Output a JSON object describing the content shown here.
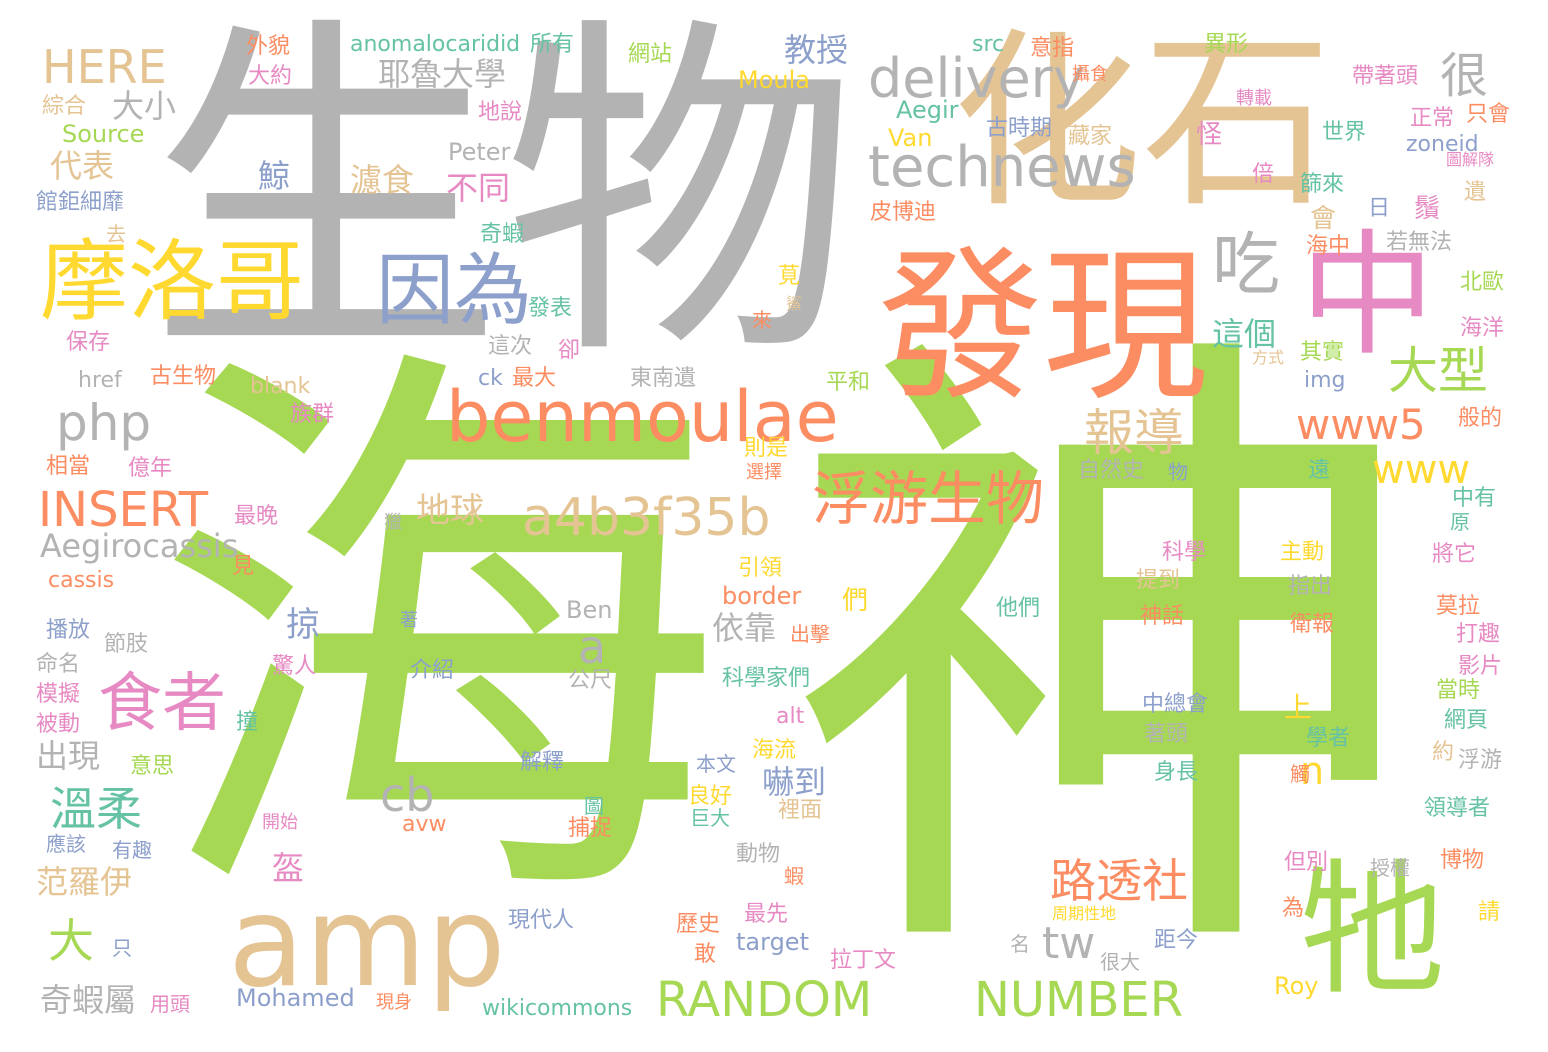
{
  "palette": {
    "green": "#a6d854",
    "gray": "#b3b3b3",
    "tan": "#e5c494",
    "orange": "#fc8d62",
    "yellow": "#ffd92f",
    "blue": "#8da0cb",
    "pink": "#e78ac3",
    "teal": "#66c2a5"
  },
  "words": [
    {
      "text": "海",
      "color": "green"
    },
    {
      "text": "神",
      "color": "green"
    },
    {
      "text": "生物",
      "color": "gray"
    },
    {
      "text": "化石",
      "color": "tan"
    },
    {
      "text": "發現",
      "color": "orange"
    },
    {
      "text": "中",
      "color": "pink"
    },
    {
      "text": "牠",
      "color": "green"
    },
    {
      "text": "amp",
      "color": "tan"
    },
    {
      "text": "摩洛哥",
      "color": "yellow"
    },
    {
      "text": "benmoulae",
      "color": "orange"
    },
    {
      "text": "因為",
      "color": "blue"
    },
    {
      "text": "technews",
      "color": "gray"
    },
    {
      "text": "delivery",
      "color": "gray"
    },
    {
      "text": "浮游生物",
      "color": "orange"
    },
    {
      "text": "a4b3f35b",
      "color": "tan"
    },
    {
      "text": "RANDOM",
      "color": "green"
    },
    {
      "text": "NUMBER",
      "color": "green"
    },
    {
      "text": "INSERT",
      "color": "orange"
    },
    {
      "text": "食者",
      "color": "pink"
    },
    {
      "text": "HERE",
      "color": "tan"
    },
    {
      "text": "吃",
      "color": "gray"
    },
    {
      "text": "很",
      "color": "gray"
    },
    {
      "text": "php",
      "color": "gray"
    },
    {
      "text": "www5",
      "color": "orange"
    },
    {
      "text": "www",
      "color": "yellow"
    },
    {
      "text": "大型",
      "color": "green"
    },
    {
      "text": "報導",
      "color": "tan"
    },
    {
      "text": "路透社",
      "color": "orange"
    },
    {
      "text": "cb",
      "color": "gray"
    },
    {
      "text": "tw",
      "color": "gray"
    },
    {
      "text": "溫柔",
      "color": "teal"
    },
    {
      "text": "大",
      "color": "green"
    },
    {
      "text": "a",
      "color": "gray"
    },
    {
      "text": "Aegirocassis",
      "color": "gray"
    },
    {
      "text": "教授",
      "color": "blue"
    },
    {
      "text": "耶魯大學",
      "color": "gray"
    },
    {
      "text": "大小",
      "color": "gray"
    },
    {
      "text": "代表",
      "color": "tan"
    },
    {
      "text": "地球",
      "color": "tan"
    },
    {
      "text": "濾食",
      "color": "tan"
    },
    {
      "text": "不同",
      "color": "pink"
    },
    {
      "text": "鯨",
      "color": "blue"
    },
    {
      "text": "這個",
      "color": "teal"
    },
    {
      "text": "依靠",
      "color": "gray"
    },
    {
      "text": "掠",
      "color": "blue"
    },
    {
      "text": "出現",
      "color": "gray"
    },
    {
      "text": "奇蝦屬",
      "color": "gray"
    },
    {
      "text": "范羅伊",
      "color": "tan"
    },
    {
      "text": "嚇到",
      "color": "blue"
    },
    {
      "text": "盔",
      "color": "pink"
    },
    {
      "text": "n",
      "color": "yellow"
    },
    {
      "text": "Peter",
      "color": "gray"
    },
    {
      "text": "Ben",
      "color": "gray"
    },
    {
      "text": "Aegir",
      "color": "teal"
    },
    {
      "text": "Moula",
      "color": "yellow"
    },
    {
      "text": "Van",
      "color": "yellow"
    },
    {
      "text": "Roy",
      "color": "yellow"
    },
    {
      "text": "Mohamed",
      "color": "blue"
    },
    {
      "text": "Source",
      "color": "green"
    },
    {
      "text": "anomalocaridid",
      "color": "teal"
    },
    {
      "text": "wikicommons",
      "color": "teal"
    },
    {
      "text": "target",
      "color": "blue"
    },
    {
      "text": "border",
      "color": "orange"
    },
    {
      "text": "href",
      "color": "gray"
    },
    {
      "text": "blank",
      "color": "tan"
    },
    {
      "text": "cassis",
      "color": "orange"
    },
    {
      "text": "img",
      "color": "blue"
    },
    {
      "text": "alt",
      "color": "pink"
    },
    {
      "text": "avw",
      "color": "orange"
    },
    {
      "text": "ck",
      "color": "blue"
    },
    {
      "text": "src",
      "color": "teal"
    },
    {
      "text": "zoneid",
      "color": "blue"
    },
    {
      "text": "外貌",
      "color": "orange"
    },
    {
      "text": "大約",
      "color": "pink"
    },
    {
      "text": "所有",
      "color": "teal"
    },
    {
      "text": "網站",
      "color": "green"
    },
    {
      "text": "意指",
      "color": "orange"
    },
    {
      "text": "異形",
      "color": "green"
    },
    {
      "text": "攝食",
      "color": "orange"
    },
    {
      "text": "帶著頭",
      "color": "pink"
    },
    {
      "text": "只會",
      "color": "orange"
    },
    {
      "text": "綜合",
      "color": "tan"
    },
    {
      "text": "地說",
      "color": "pink"
    },
    {
      "text": "古時期",
      "color": "blue"
    },
    {
      "text": "藏家",
      "color": "tan"
    },
    {
      "text": "轉載",
      "color": "pink"
    },
    {
      "text": "正常",
      "color": "pink"
    },
    {
      "text": "世界",
      "color": "teal"
    },
    {
      "text": "圖解隊",
      "color": "pink"
    },
    {
      "text": "館鉅細靡",
      "color": "blue"
    },
    {
      "text": "皮博迪",
      "color": "orange"
    },
    {
      "text": "奇蝦",
      "color": "teal"
    },
    {
      "text": "怪",
      "color": "pink"
    },
    {
      "text": "倍",
      "color": "pink"
    },
    {
      "text": "篩來",
      "color": "teal"
    },
    {
      "text": "鬚",
      "color": "pink"
    },
    {
      "text": "會",
      "color": "tan"
    },
    {
      "text": "日",
      "color": "blue"
    },
    {
      "text": "遺",
      "color": "tan"
    },
    {
      "text": "去",
      "color": "tan"
    },
    {
      "text": "若無法",
      "color": "gray"
    },
    {
      "text": "海中",
      "color": "orange"
    },
    {
      "text": "北歐",
      "color": "green"
    },
    {
      "text": "莧",
      "color": "yellow"
    },
    {
      "text": "鯊",
      "color": "tan"
    },
    {
      "text": "來",
      "color": "orange"
    },
    {
      "text": "發表",
      "color": "teal"
    },
    {
      "text": "保存",
      "color": "pink"
    },
    {
      "text": "這次",
      "color": "gray"
    },
    {
      "text": "卻",
      "color": "pink"
    },
    {
      "text": "其實",
      "color": "green"
    },
    {
      "text": "方式",
      "color": "tan"
    },
    {
      "text": "海洋",
      "color": "pink"
    },
    {
      "text": "古生物",
      "color": "orange"
    },
    {
      "text": "最大",
      "color": "orange"
    },
    {
      "text": "東南遺",
      "color": "gray"
    },
    {
      "text": "平和",
      "color": "green"
    },
    {
      "text": "族群",
      "color": "pink"
    },
    {
      "text": "般的",
      "color": "orange"
    },
    {
      "text": "相當",
      "color": "orange"
    },
    {
      "text": "億年",
      "color": "pink"
    },
    {
      "text": "則是",
      "color": "yellow"
    },
    {
      "text": "選擇",
      "color": "orange"
    },
    {
      "text": "自然史",
      "color": "gray"
    },
    {
      "text": "物",
      "color": "blue"
    },
    {
      "text": "遠",
      "color": "teal"
    },
    {
      "text": "中有",
      "color": "teal"
    },
    {
      "text": "最晚",
      "color": "pink"
    },
    {
      "text": "獵",
      "color": "gray"
    },
    {
      "text": "原",
      "color": "teal"
    },
    {
      "text": "見",
      "color": "orange"
    },
    {
      "text": "引領",
      "color": "yellow"
    },
    {
      "text": "科學",
      "color": "pink"
    },
    {
      "text": "提到",
      "color": "tan"
    },
    {
      "text": "主動",
      "color": "yellow"
    },
    {
      "text": "指出",
      "color": "gray"
    },
    {
      "text": "將它",
      "color": "pink"
    },
    {
      "text": "播放",
      "color": "blue"
    },
    {
      "text": "節肢",
      "color": "gray"
    },
    {
      "text": "著",
      "color": "blue"
    },
    {
      "text": "出擊",
      "color": "orange"
    },
    {
      "text": "們",
      "color": "yellow"
    },
    {
      "text": "他們",
      "color": "teal"
    },
    {
      "text": "神話",
      "color": "orange"
    },
    {
      "text": "衛報",
      "color": "orange"
    },
    {
      "text": "莫拉",
      "color": "orange"
    },
    {
      "text": "打趣",
      "color": "pink"
    },
    {
      "text": "命名",
      "color": "gray"
    },
    {
      "text": "驚人",
      "color": "pink"
    },
    {
      "text": "介紹",
      "color": "blue"
    },
    {
      "text": "公尺",
      "color": "gray"
    },
    {
      "text": "影片",
      "color": "pink"
    },
    {
      "text": "模擬",
      "color": "pink"
    },
    {
      "text": "科學家們",
      "color": "teal"
    },
    {
      "text": "當時",
      "color": "green"
    },
    {
      "text": "撞",
      "color": "teal"
    },
    {
      "text": "被動",
      "color": "pink"
    },
    {
      "text": "中總會",
      "color": "blue"
    },
    {
      "text": "上",
      "color": "yellow"
    },
    {
      "text": "網頁",
      "color": "teal"
    },
    {
      "text": "海流",
      "color": "yellow"
    },
    {
      "text": "著頭",
      "color": "gray"
    },
    {
      "text": "學者",
      "color": "teal"
    },
    {
      "text": "約",
      "color": "tan"
    },
    {
      "text": "浮游",
      "color": "gray"
    },
    {
      "text": "意思",
      "color": "green"
    },
    {
      "text": "解釋",
      "color": "blue"
    },
    {
      "text": "本文",
      "color": "blue"
    },
    {
      "text": "身長",
      "color": "teal"
    },
    {
      "text": "觸",
      "color": "orange"
    },
    {
      "text": "良好",
      "color": "yellow"
    },
    {
      "text": "裡面",
      "color": "tan"
    },
    {
      "text": "領導者",
      "color": "teal"
    },
    {
      "text": "開始",
      "color": "pink"
    },
    {
      "text": "應該",
      "color": "blue"
    },
    {
      "text": "有趣",
      "color": "blue"
    },
    {
      "text": "圖",
      "color": "teal"
    },
    {
      "text": "捕捉",
      "color": "orange"
    },
    {
      "text": "巨大",
      "color": "teal"
    },
    {
      "text": "動物",
      "color": "gray"
    },
    {
      "text": "博物",
      "color": "orange"
    },
    {
      "text": "蝦",
      "color": "orange"
    },
    {
      "text": "但別",
      "color": "pink"
    },
    {
      "text": "授權",
      "color": "gray"
    },
    {
      "text": "現代人",
      "color": "blue"
    },
    {
      "text": "最先",
      "color": "pink"
    },
    {
      "text": "歷史",
      "color": "orange"
    },
    {
      "text": "周期性地",
      "color": "yellow"
    },
    {
      "text": "為",
      "color": "orange"
    },
    {
      "text": "請",
      "color": "yellow"
    },
    {
      "text": "只",
      "color": "blue"
    },
    {
      "text": "敢",
      "color": "orange"
    },
    {
      "text": "名",
      "color": "gray"
    },
    {
      "text": "距今",
      "color": "blue"
    },
    {
      "text": "拉丁文",
      "color": "pink"
    },
    {
      "text": "很大",
      "color": "gray"
    },
    {
      "text": "用頭",
      "color": "pink"
    },
    {
      "text": "現身",
      "color": "orange"
    }
  ]
}
